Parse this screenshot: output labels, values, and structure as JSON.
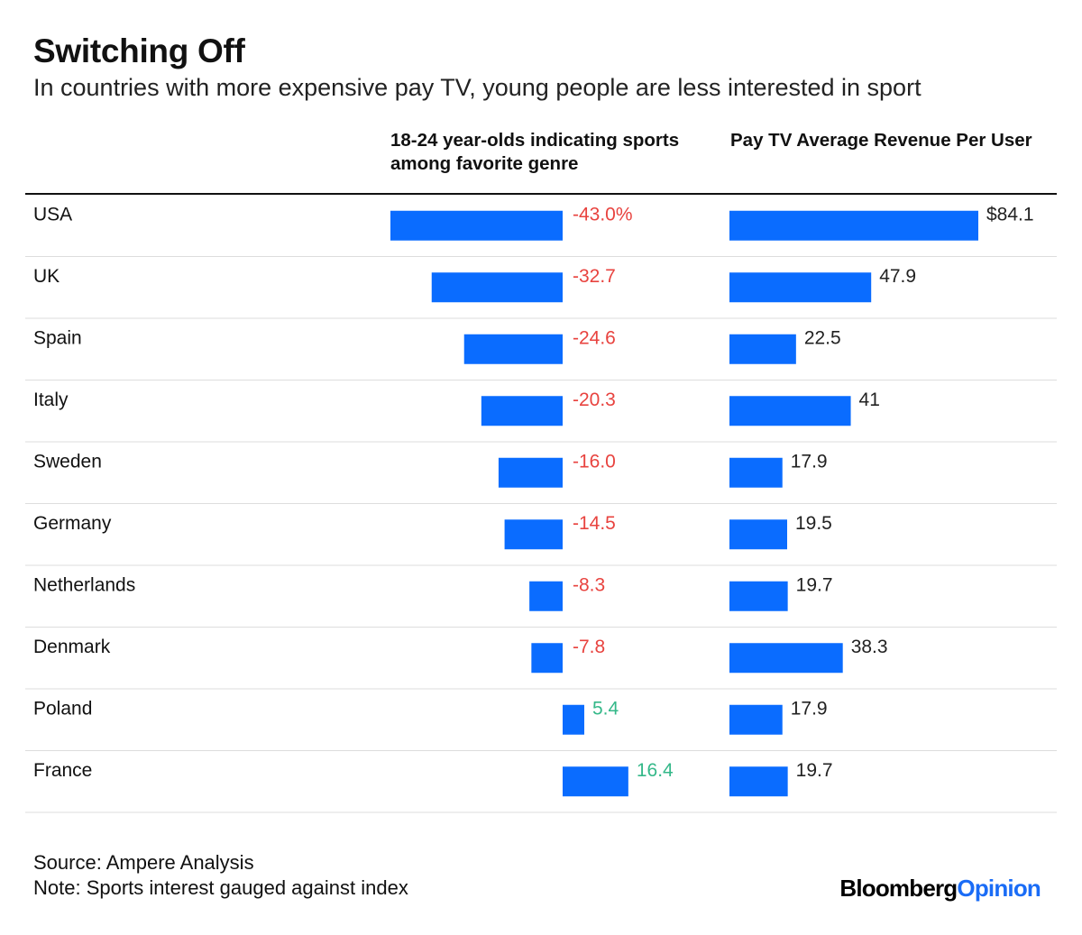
{
  "title": "Switching Off",
  "subtitle": "In countries with more expensive pay TV, young people are less interested in sport",
  "colors": {
    "bar": "#0a6cff",
    "negative_label": "#e8433f",
    "positive_label": "#34b889",
    "value_label": "#222222",
    "row_divider": "#dddddd"
  },
  "chart_data": {
    "type": "bar",
    "categories": [
      "USA",
      "UK",
      "Spain",
      "Italy",
      "Sweden",
      "Germany",
      "Netherlands",
      "Denmark",
      "Poland",
      "France"
    ],
    "series": [
      {
        "name": "18-24 year-olds indicating sports among favorite genre",
        "values": [
          -43.0,
          -32.7,
          -24.6,
          -20.3,
          -16.0,
          -14.5,
          -8.3,
          -7.8,
          5.4,
          16.4
        ],
        "labels": [
          "-43.0%",
          "-32.7",
          "-24.6",
          "-20.3",
          "-16.0",
          "-14.5",
          "-8.3",
          "-7.8",
          "5.4",
          "16.4"
        ]
      },
      {
        "name": "Pay TV Average Revenue Per User",
        "values": [
          84.1,
          47.9,
          22.5,
          41,
          17.9,
          19.5,
          19.7,
          38.3,
          17.9,
          19.7
        ],
        "labels": [
          "$84.1",
          "47.9",
          "22.5",
          "41",
          "17.9",
          "19.5",
          "19.7",
          "38.3",
          "17.9",
          "19.7"
        ]
      }
    ]
  },
  "footer": {
    "source": "Source: Ampere Analysis",
    "note": "Note: Sports interest gauged against index"
  },
  "logo": {
    "part1": "Bloomberg",
    "part2": "Opinion"
  }
}
